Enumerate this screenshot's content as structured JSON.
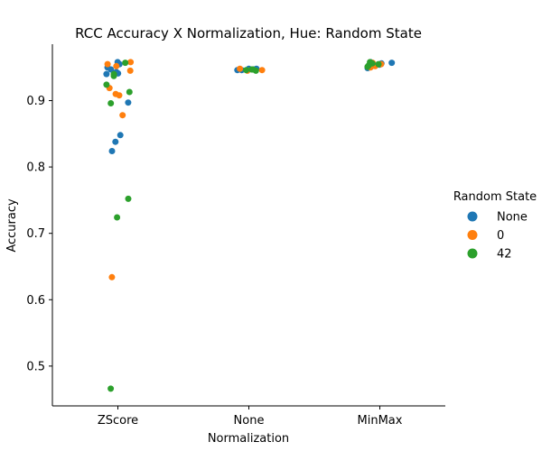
{
  "chart_data": {
    "type": "scatter",
    "title": "RCC Accuracy X Normalization, Hue: Random State",
    "xlabel": "Normalization",
    "ylabel": "Accuracy",
    "categories": [
      "ZScore",
      "None",
      "MinMax"
    ],
    "ylim": [
      0.44,
      0.985
    ],
    "yticks": [
      "0.5",
      "0.6",
      "0.7",
      "0.8",
      "0.9"
    ],
    "grid": false,
    "legend": {
      "title": "Random State",
      "placement": "right",
      "entries": [
        "None",
        "0",
        "42"
      ]
    },
    "series": [
      {
        "name": "None",
        "color": "#1f77b4",
        "points": [
          {
            "category": "ZScore",
            "y": 0.958
          },
          {
            "category": "ZScore",
            "y": 0.955
          },
          {
            "category": "ZScore",
            "y": 0.95
          },
          {
            "category": "ZScore",
            "y": 0.947
          },
          {
            "category": "ZScore",
            "y": 0.943
          },
          {
            "category": "ZScore",
            "y": 0.941
          },
          {
            "category": "ZScore",
            "y": 0.94
          },
          {
            "category": "ZScore",
            "y": 0.897
          },
          {
            "category": "ZScore",
            "y": 0.848
          },
          {
            "category": "ZScore",
            "y": 0.838
          },
          {
            "category": "ZScore",
            "y": 0.824
          },
          {
            "category": "None",
            "y": 0.948
          },
          {
            "category": "None",
            "y": 0.947
          },
          {
            "category": "None",
            "y": 0.946
          },
          {
            "category": "None",
            "y": 0.948
          },
          {
            "category": "None",
            "y": 0.946
          },
          {
            "category": "None",
            "y": 0.947
          },
          {
            "category": "MinMax",
            "y": 0.958
          },
          {
            "category": "MinMax",
            "y": 0.956
          },
          {
            "category": "MinMax",
            "y": 0.954
          },
          {
            "category": "MinMax",
            "y": 0.951
          },
          {
            "category": "MinMax",
            "y": 0.949
          },
          {
            "category": "MinMax",
            "y": 0.957
          }
        ]
      },
      {
        "name": "0",
        "color": "#ff7f0e",
        "points": [
          {
            "category": "ZScore",
            "y": 0.958
          },
          {
            "category": "ZScore",
            "y": 0.955
          },
          {
            "category": "ZScore",
            "y": 0.952
          },
          {
            "category": "ZScore",
            "y": 0.945
          },
          {
            "category": "ZScore",
            "y": 0.919
          },
          {
            "category": "ZScore",
            "y": 0.91
          },
          {
            "category": "ZScore",
            "y": 0.908
          },
          {
            "category": "ZScore",
            "y": 0.878
          },
          {
            "category": "ZScore",
            "y": 0.634
          },
          {
            "category": "None",
            "y": 0.948
          },
          {
            "category": "None",
            "y": 0.946
          },
          {
            "category": "None",
            "y": 0.945
          },
          {
            "category": "MinMax",
            "y": 0.957
          },
          {
            "category": "MinMax",
            "y": 0.955
          },
          {
            "category": "MinMax",
            "y": 0.952
          },
          {
            "category": "MinMax",
            "y": 0.95
          }
        ]
      },
      {
        "name": "42",
        "color": "#2ca02c",
        "points": [
          {
            "category": "ZScore",
            "y": 0.957
          },
          {
            "category": "ZScore",
            "y": 0.94
          },
          {
            "category": "ZScore",
            "y": 0.937
          },
          {
            "category": "ZScore",
            "y": 0.924
          },
          {
            "category": "ZScore",
            "y": 0.913
          },
          {
            "category": "ZScore",
            "y": 0.896
          },
          {
            "category": "ZScore",
            "y": 0.752
          },
          {
            "category": "ZScore",
            "y": 0.724
          },
          {
            "category": "ZScore",
            "y": 0.466
          },
          {
            "category": "None",
            "y": 0.947
          },
          {
            "category": "None",
            "y": 0.946
          },
          {
            "category": "None",
            "y": 0.945
          },
          {
            "category": "None",
            "y": 0.947
          },
          {
            "category": "MinMax",
            "y": 0.958
          },
          {
            "category": "MinMax",
            "y": 0.956
          },
          {
            "category": "MinMax",
            "y": 0.955
          },
          {
            "category": "MinMax",
            "y": 0.953
          },
          {
            "category": "MinMax",
            "y": 0.951
          }
        ]
      }
    ]
  }
}
